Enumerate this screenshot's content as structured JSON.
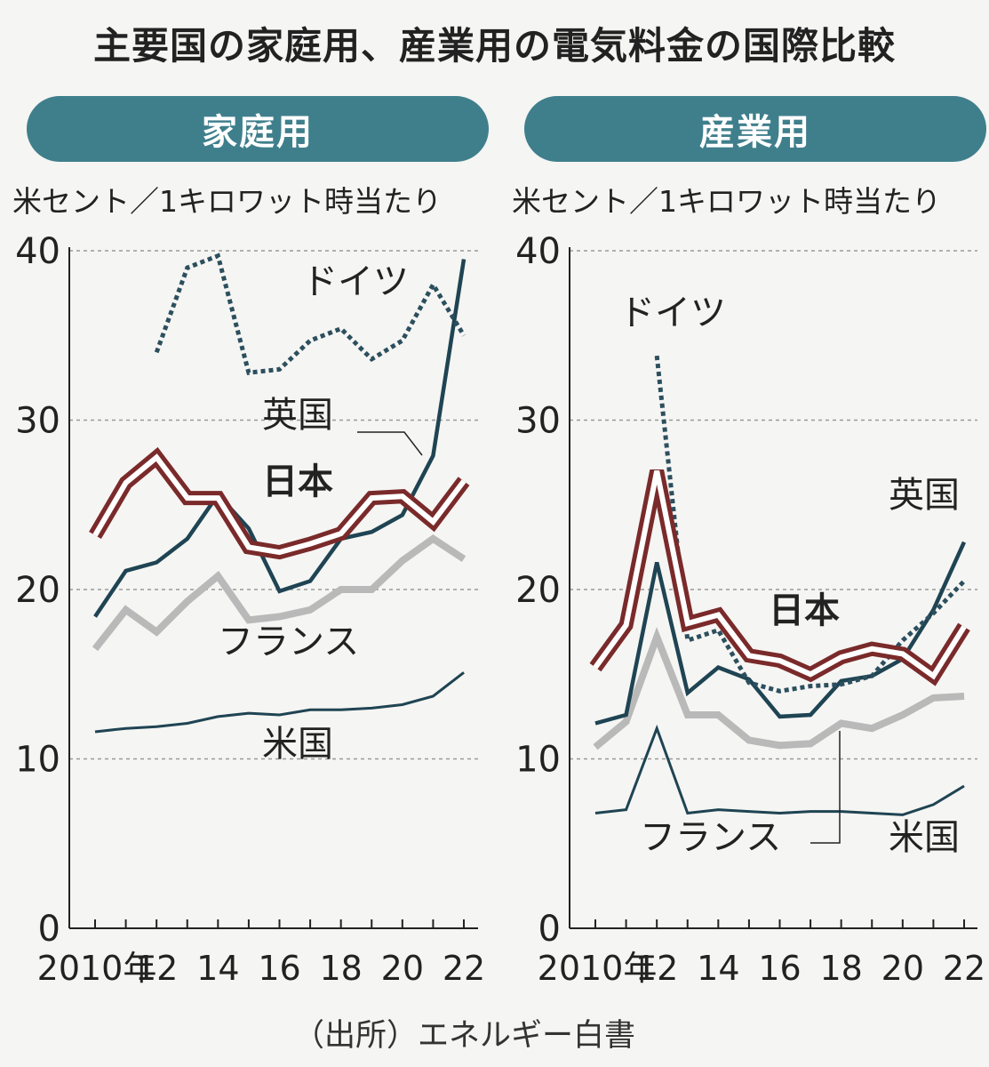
{
  "title": "主要国の家庭用、産業用の電気料金の国際比較",
  "source": "（出所）エネルギー白書",
  "colors": {
    "pill": "#3f7f8c",
    "japan_outline": "#7a2a2a",
    "uk": "#1f4453",
    "germany": "#2c4f5e",
    "france": "#b9b9b9",
    "us": "#1f4453",
    "grid": "#9a9a9a"
  },
  "chart_data": [
    {
      "type": "line",
      "panel": "家庭用",
      "ylabel": "米セント／1キロワット時当たり",
      "ylim": [
        0,
        40
      ],
      "yticks": [
        0,
        10,
        20,
        30,
        40
      ],
      "x": [
        2010,
        2011,
        2012,
        2013,
        2014,
        2015,
        2016,
        2017,
        2018,
        2019,
        2020,
        2021,
        2022
      ],
      "xtick_labels": [
        {
          "x": 2010,
          "label": "2010年"
        },
        {
          "x": 2012,
          "label": "12"
        },
        {
          "x": 2014,
          "label": "14"
        },
        {
          "x": 2016,
          "label": "16"
        },
        {
          "x": 2018,
          "label": "18"
        },
        {
          "x": 2020,
          "label": "20"
        },
        {
          "x": 2022,
          "label": "22"
        }
      ],
      "series": [
        {
          "name": "日本",
          "style": "japan",
          "values": [
            23.2,
            26.3,
            27.8,
            25.4,
            25.4,
            22.5,
            22.2,
            22.7,
            23.3,
            25.4,
            25.5,
            24.0,
            26.4
          ]
        },
        {
          "name": "英国",
          "style": "uk",
          "values": [
            18.4,
            21.1,
            21.6,
            23.0,
            25.6,
            23.6,
            19.9,
            20.5,
            23.0,
            23.4,
            24.4,
            27.9,
            39.5
          ]
        },
        {
          "name": "ドイツ",
          "style": "germany",
          "values": [
            null,
            null,
            34.0,
            39.0,
            39.7,
            32.8,
            33.0,
            34.7,
            35.4,
            33.6,
            34.7,
            38.0,
            35.0
          ]
        },
        {
          "name": "フランス",
          "style": "france",
          "values": [
            16.5,
            18.8,
            17.5,
            19.3,
            20.8,
            18.2,
            18.4,
            18.8,
            20.0,
            20.0,
            21.7,
            23.0,
            21.8
          ]
        },
        {
          "name": "米国",
          "style": "us",
          "values": [
            11.6,
            11.8,
            11.9,
            12.1,
            12.5,
            12.7,
            12.6,
            12.9,
            12.9,
            13.0,
            13.2,
            13.7,
            15.1
          ]
        }
      ],
      "labels": [
        {
          "text": "ドイツ",
          "bold": false
        },
        {
          "text": "英国",
          "bold": false
        },
        {
          "text": "日本",
          "bold": true
        },
        {
          "text": "フランス",
          "bold": false
        },
        {
          "text": "米国",
          "bold": false
        }
      ]
    },
    {
      "type": "line",
      "panel": "産業用",
      "ylabel": "米セント／1キロワット時当たり",
      "ylim": [
        0,
        40
      ],
      "yticks": [
        0,
        10,
        20,
        30,
        40
      ],
      "x": [
        2010,
        2011,
        2012,
        2013,
        2014,
        2015,
        2016,
        2017,
        2018,
        2019,
        2020,
        2021,
        2022
      ],
      "xtick_labels": [
        {
          "x": 2010,
          "label": "2010年"
        },
        {
          "x": 2012,
          "label": "12"
        },
        {
          "x": 2014,
          "label": "14"
        },
        {
          "x": 2016,
          "label": "16"
        },
        {
          "x": 2018,
          "label": "18"
        },
        {
          "x": 2020,
          "label": "20"
        },
        {
          "x": 2022,
          "label": "22"
        }
      ],
      "series": [
        {
          "name": "日本",
          "style": "japan",
          "values": [
            15.4,
            17.9,
            27.0,
            18.0,
            18.5,
            16.1,
            15.8,
            15.0,
            16.0,
            16.5,
            16.2,
            14.9,
            17.8
          ]
        },
        {
          "name": "英国",
          "style": "uk",
          "values": [
            12.1,
            12.6,
            21.6,
            13.9,
            15.4,
            14.7,
            12.5,
            12.6,
            14.6,
            14.9,
            15.9,
            18.8,
            22.8
          ]
        },
        {
          "name": "ドイツ",
          "style": "germany",
          "values": [
            null,
            null,
            33.8,
            17.0,
            17.6,
            14.5,
            14.0,
            14.3,
            14.4,
            14.9,
            17.0,
            18.6,
            20.5
          ]
        },
        {
          "name": "フランス",
          "style": "france",
          "values": [
            10.7,
            12.2,
            17.2,
            12.6,
            12.6,
            11.1,
            10.8,
            10.9,
            12.1,
            11.8,
            12.6,
            13.6,
            13.7
          ]
        },
        {
          "name": "米国",
          "style": "us",
          "values": [
            6.8,
            7.0,
            11.8,
            6.8,
            7.0,
            6.9,
            6.8,
            6.9,
            6.9,
            6.8,
            6.7,
            7.3,
            8.4
          ]
        }
      ],
      "labels": [
        {
          "text": "ドイツ",
          "bold": false
        },
        {
          "text": "英国",
          "bold": false
        },
        {
          "text": "日本",
          "bold": true
        },
        {
          "text": "フランス",
          "bold": false
        },
        {
          "text": "米国",
          "bold": false
        }
      ]
    }
  ]
}
